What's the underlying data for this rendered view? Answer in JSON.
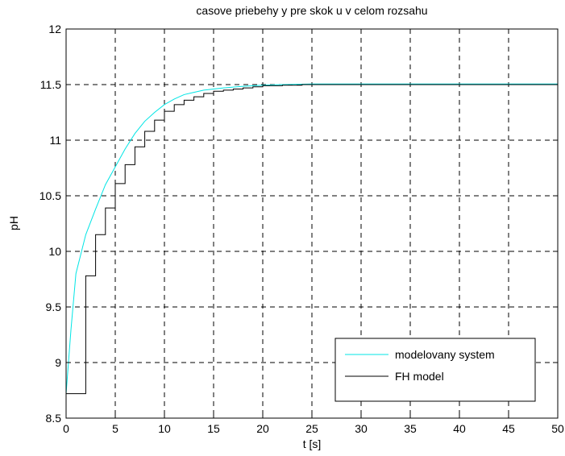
{
  "chart_data": {
    "type": "line",
    "title": "casove priebehy y pre skok u v celom rozsahu",
    "xlabel": "t [s]",
    "ylabel": "pH",
    "xlim": [
      0,
      50
    ],
    "ylim": [
      8.5,
      12
    ],
    "xticks": [
      0,
      5,
      10,
      15,
      20,
      25,
      30,
      35,
      40,
      45,
      50
    ],
    "yticks": [
      8.5,
      9,
      9.5,
      10,
      10.5,
      11,
      11.5,
      12
    ],
    "xtick_labels": [
      "0",
      "5",
      "10",
      "15",
      "20",
      "25",
      "30",
      "35",
      "40",
      "45",
      "50"
    ],
    "ytick_labels": [
      "8.5",
      "9",
      "9.5",
      "10",
      "10.5",
      "11",
      "11.5",
      "12"
    ],
    "grid": true,
    "legend_position": "bottom-right",
    "series": [
      {
        "name": "modelovany system",
        "color": "#00e5e5",
        "style": "line",
        "x": [
          0,
          0.5,
          1,
          2,
          3,
          4,
          5,
          6,
          7,
          8,
          9,
          10,
          11,
          12,
          13,
          14,
          15,
          16,
          18,
          20,
          22,
          25,
          30,
          35,
          40,
          45,
          50
        ],
        "y": [
          8.72,
          9.3,
          9.8,
          10.15,
          10.38,
          10.6,
          10.76,
          10.92,
          11.06,
          11.17,
          11.25,
          11.32,
          11.37,
          11.41,
          11.43,
          11.45,
          11.46,
          11.47,
          11.485,
          11.495,
          11.5,
          11.505,
          11.505,
          11.505,
          11.505,
          11.505,
          11.505
        ]
      },
      {
        "name": "FH model",
        "color": "#000000",
        "style": "step",
        "x": [
          0,
          2,
          3,
          4,
          5,
          6,
          7,
          8,
          9,
          10,
          11,
          12,
          13,
          14,
          15,
          16,
          17,
          18,
          19,
          20,
          22,
          24,
          26,
          28,
          30,
          35,
          40,
          45,
          50
        ],
        "y": [
          8.72,
          9.78,
          10.15,
          10.39,
          10.61,
          10.78,
          10.94,
          11.08,
          11.18,
          11.26,
          11.32,
          11.36,
          11.39,
          11.42,
          11.44,
          11.45,
          11.46,
          11.47,
          11.48,
          11.49,
          11.495,
          11.5,
          11.5,
          11.5,
          11.5,
          11.5,
          11.5,
          11.5,
          11.5
        ]
      }
    ]
  }
}
